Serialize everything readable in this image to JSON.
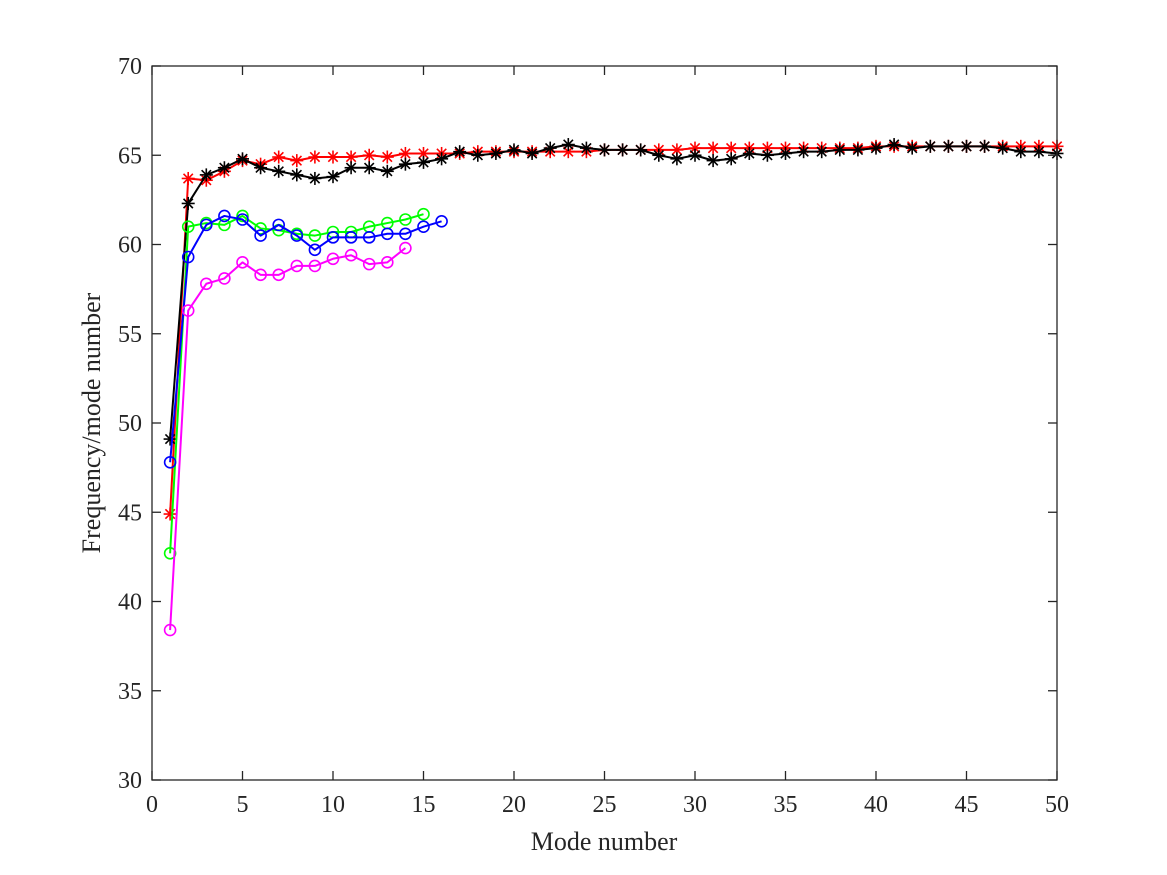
{
  "chart_data": {
    "type": "line",
    "title": "",
    "xlabel": "Mode number",
    "ylabel": "Frequency/mode number",
    "xlim": [
      0,
      50
    ],
    "ylim": [
      30,
      70
    ],
    "xticks": [
      0,
      5,
      10,
      15,
      20,
      25,
      30,
      35,
      40,
      45,
      50
    ],
    "yticks": [
      30,
      35,
      40,
      45,
      50,
      55,
      60,
      65,
      70
    ],
    "grid": false,
    "legend": "none",
    "series": [
      {
        "name": "red-star",
        "color": "#ff0000",
        "marker": "star",
        "x": [
          1,
          2,
          3,
          4,
          5,
          6,
          7,
          8,
          9,
          10,
          11,
          12,
          13,
          14,
          15,
          16,
          17,
          18,
          19,
          20,
          21,
          22,
          23,
          24,
          25,
          26,
          27,
          28,
          29,
          30,
          31,
          32,
          33,
          34,
          35,
          36,
          37,
          38,
          39,
          40,
          41,
          42,
          43,
          44,
          45,
          46,
          47,
          48,
          49,
          50
        ],
        "y": [
          44.9,
          63.7,
          63.6,
          64.1,
          64.7,
          64.5,
          64.9,
          64.7,
          64.9,
          64.9,
          64.9,
          65.0,
          64.9,
          65.1,
          65.1,
          65.1,
          65.1,
          65.2,
          65.2,
          65.2,
          65.2,
          65.2,
          65.2,
          65.2,
          65.3,
          65.3,
          65.3,
          65.3,
          65.3,
          65.4,
          65.4,
          65.4,
          65.4,
          65.4,
          65.4,
          65.4,
          65.4,
          65.4,
          65.4,
          65.5,
          65.5,
          65.5,
          65.5,
          65.5,
          65.5,
          65.5,
          65.5,
          65.5,
          65.5,
          65.5
        ]
      },
      {
        "name": "black-star",
        "color": "#000000",
        "marker": "star",
        "x": [
          1,
          2,
          3,
          4,
          5,
          6,
          7,
          8,
          9,
          10,
          11,
          12,
          13,
          14,
          15,
          16,
          17,
          18,
          19,
          20,
          21,
          22,
          23,
          24,
          25,
          26,
          27,
          28,
          29,
          30,
          31,
          32,
          33,
          34,
          35,
          36,
          37,
          38,
          39,
          40,
          41,
          42,
          43,
          44,
          45,
          46,
          47,
          48,
          49,
          50
        ],
        "y": [
          49.1,
          62.3,
          63.9,
          64.3,
          64.8,
          64.3,
          64.1,
          63.9,
          63.7,
          63.8,
          64.3,
          64.3,
          64.1,
          64.5,
          64.6,
          64.8,
          65.2,
          65.0,
          65.1,
          65.3,
          65.1,
          65.4,
          65.6,
          65.4,
          65.3,
          65.3,
          65.3,
          65.0,
          64.8,
          65.0,
          64.7,
          64.8,
          65.1,
          65.0,
          65.1,
          65.2,
          65.2,
          65.3,
          65.3,
          65.4,
          65.6,
          65.4,
          65.5,
          65.5,
          65.5,
          65.5,
          65.4,
          65.2,
          65.2,
          65.1
        ]
      },
      {
        "name": "green-circle",
        "color": "#00ff00",
        "marker": "circle",
        "x": [
          1,
          2,
          3,
          4,
          5,
          6,
          7,
          8,
          9,
          10,
          11,
          12,
          13,
          14,
          15
        ],
        "y": [
          42.7,
          61.0,
          61.2,
          61.1,
          61.6,
          60.9,
          60.8,
          60.6,
          60.5,
          60.7,
          60.7,
          61.0,
          61.2,
          61.4,
          61.7
        ]
      },
      {
        "name": "blue-circle",
        "color": "#0000ff",
        "marker": "circle",
        "x": [
          1,
          2,
          3,
          4,
          5,
          6,
          7,
          8,
          9,
          10,
          11,
          12,
          13,
          14,
          15,
          16
        ],
        "y": [
          47.8,
          59.3,
          61.1,
          61.6,
          61.4,
          60.5,
          61.1,
          60.5,
          59.7,
          60.4,
          60.4,
          60.4,
          60.6,
          60.6,
          61.0,
          61.3
        ]
      },
      {
        "name": "magenta-circle",
        "color": "#ff00ff",
        "marker": "circle",
        "x": [
          1,
          2,
          3,
          4,
          5,
          6,
          7,
          8,
          9,
          10,
          11,
          12,
          13,
          14
        ],
        "y": [
          38.4,
          56.3,
          57.8,
          58.1,
          59.0,
          58.3,
          58.3,
          58.8,
          58.8,
          59.2,
          59.4,
          58.9,
          59.0,
          59.8
        ]
      }
    ]
  }
}
